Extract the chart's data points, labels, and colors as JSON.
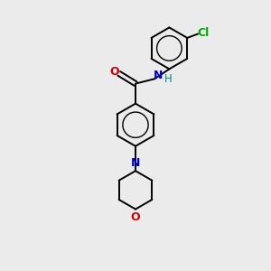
{
  "background_color": "#ebebeb",
  "bond_color": "#000000",
  "figsize": [
    3.0,
    3.0
  ],
  "dpi": 100,
  "atom_colors": {
    "O": "#cc0000",
    "N_amide": "#0000cc",
    "N_morpholine": "#0000cc",
    "Cl": "#00aa00",
    "H": "#008888",
    "C": "#000000"
  },
  "lw": 1.4
}
